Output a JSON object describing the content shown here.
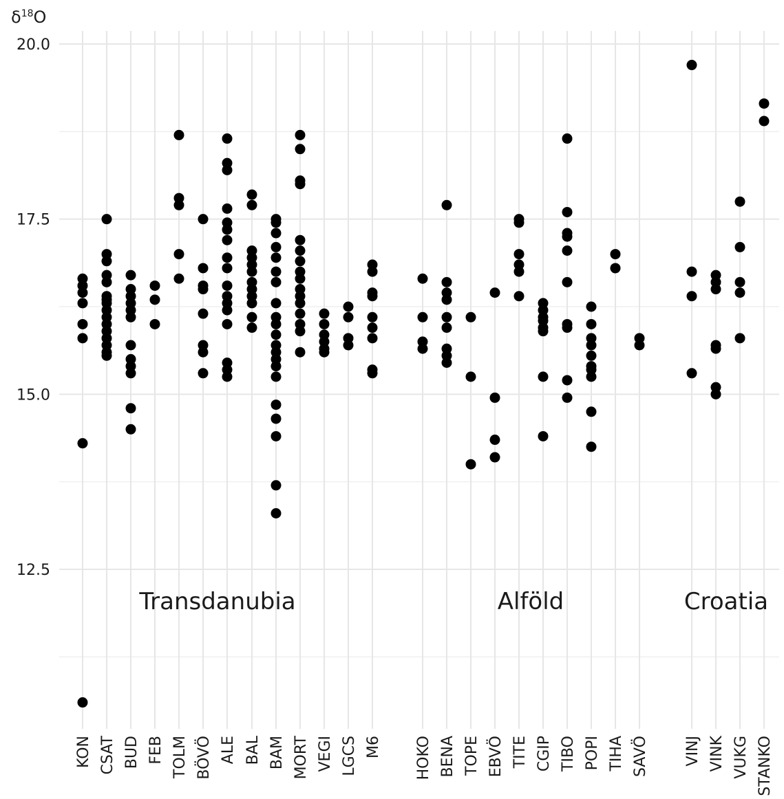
{
  "chart_data": {
    "type": "scatter",
    "ylabel": "δ18O",
    "ylim": [
      10.4,
      20.2
    ],
    "yticks": [
      12.5,
      15.0,
      17.5,
      20.0
    ],
    "ytick_labels": [
      "12.5",
      "15.0",
      "17.5",
      "20.0"
    ],
    "grid": true,
    "groups": [
      {
        "name": "Transdanubia",
        "categories": [
          "KON",
          "CSAT",
          "BUD",
          "FEB",
          "TOLM",
          "BÖVÖ",
          "ALE",
          "BAL",
          "BAM",
          "MORT",
          "VEGI",
          "LGCS",
          "M6"
        ]
      },
      {
        "name": "Alföld",
        "categories": [
          "HOKO",
          "BENA",
          "TOPE",
          "EBVÖ",
          "TITE",
          "CGIP",
          "TIBO",
          "POPI",
          "TIHA",
          "SAVÖ"
        ]
      },
      {
        "name": "Croatia",
        "categories": [
          "VINJ",
          "VINK",
          "VUKG",
          "STANKO"
        ]
      }
    ],
    "series": [
      {
        "category": "KON",
        "values": [
          16.65,
          16.55,
          16.45,
          16.3,
          16.0,
          15.8,
          14.3,
          10.6
        ]
      },
      {
        "category": "CSAT",
        "values": [
          17.5,
          17.0,
          16.9,
          16.7,
          16.6,
          16.4,
          16.35,
          16.3,
          16.2,
          16.1,
          16.0,
          15.9,
          15.8,
          15.7,
          15.6,
          15.55
        ]
      },
      {
        "category": "BUD",
        "values": [
          16.7,
          16.5,
          16.4,
          16.3,
          16.2,
          16.1,
          15.7,
          15.5,
          15.4,
          15.3,
          14.8,
          14.5
        ]
      },
      {
        "category": "FEB",
        "values": [
          16.55,
          16.35,
          16.0
        ]
      },
      {
        "category": "TOLM",
        "values": [
          18.7,
          17.8,
          17.7,
          17.0,
          16.65
        ]
      },
      {
        "category": "BÖVÖ",
        "values": [
          17.5,
          16.8,
          16.55,
          16.5,
          16.15,
          15.7,
          15.6,
          15.3
        ]
      },
      {
        "category": "ALE",
        "values": [
          18.65,
          18.3,
          18.2,
          17.65,
          17.45,
          17.35,
          17.2,
          16.95,
          16.8,
          16.55,
          16.4,
          16.3,
          16.2,
          16.0,
          15.45,
          15.35,
          15.25
        ]
      },
      {
        "category": "BAL",
        "values": [
          17.85,
          17.7,
          17.05,
          16.95,
          16.85,
          16.75,
          16.6,
          16.5,
          16.4,
          16.3,
          16.1,
          15.95
        ]
      },
      {
        "category": "BAM",
        "values": [
          17.5,
          17.45,
          17.3,
          17.1,
          16.95,
          16.75,
          16.6,
          16.3,
          16.1,
          16.0,
          15.85,
          15.7,
          15.6,
          15.5,
          15.4,
          15.25,
          14.85,
          14.65,
          14.4,
          13.7,
          13.3
        ]
      },
      {
        "category": "MORT",
        "values": [
          18.7,
          18.5,
          18.05,
          18.0,
          17.2,
          17.05,
          16.9,
          16.75,
          16.65,
          16.5,
          16.4,
          16.3,
          16.15,
          16.0,
          15.9,
          15.6
        ]
      },
      {
        "category": "VEGI",
        "values": [
          16.15,
          16.0,
          15.85,
          15.75,
          15.65,
          15.6
        ]
      },
      {
        "category": "LGCS",
        "values": [
          16.25,
          16.1,
          15.8,
          15.7
        ]
      },
      {
        "category": "M6",
        "values": [
          16.85,
          16.75,
          16.45,
          16.4,
          16.1,
          15.95,
          15.8,
          15.35,
          15.3
        ]
      },
      {
        "category": "HOKO",
        "values": [
          16.65,
          16.1,
          15.75,
          15.65
        ]
      },
      {
        "category": "BENA",
        "values": [
          17.7,
          16.6,
          16.45,
          16.35,
          16.1,
          15.95,
          15.65,
          15.55,
          15.45
        ]
      },
      {
        "category": "TOPE",
        "values": [
          16.1,
          15.25,
          14.0
        ]
      },
      {
        "category": "EBVÖ",
        "values": [
          16.45,
          14.95,
          14.35,
          14.1
        ]
      },
      {
        "category": "TITE",
        "values": [
          17.5,
          17.45,
          17.0,
          16.85,
          16.75,
          16.4
        ]
      },
      {
        "category": "CGIP",
        "values": [
          16.3,
          16.2,
          16.1,
          16.05,
          15.95,
          15.9,
          15.25,
          14.4
        ]
      },
      {
        "category": "TIBO",
        "values": [
          18.65,
          17.6,
          17.3,
          17.25,
          17.05,
          16.6,
          16.0,
          15.95,
          15.2,
          14.95
        ]
      },
      {
        "category": "POPI",
        "values": [
          16.25,
          16.0,
          15.8,
          15.7,
          15.55,
          15.4,
          15.35,
          15.25,
          14.75,
          14.25
        ]
      },
      {
        "category": "TIHA",
        "values": [
          17.0,
          16.8
        ]
      },
      {
        "category": "SAVÖ",
        "values": [
          15.8,
          15.7
        ]
      },
      {
        "category": "VINJ",
        "values": [
          19.7,
          16.75,
          16.4,
          15.3
        ]
      },
      {
        "category": "VINK",
        "values": [
          16.7,
          16.6,
          16.5,
          15.7,
          15.65,
          15.1,
          15.0
        ]
      },
      {
        "category": "VUKG",
        "values": [
          17.75,
          17.1,
          16.6,
          16.45,
          15.8
        ]
      },
      {
        "category": "STANKO",
        "values": [
          19.15,
          18.9
        ]
      }
    ]
  }
}
